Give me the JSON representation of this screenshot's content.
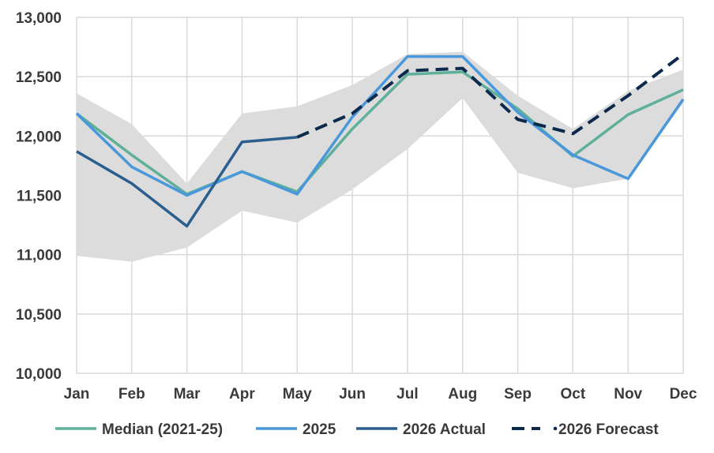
{
  "chart_data": {
    "type": "line",
    "title": "",
    "xlabel": "",
    "ylabel": "",
    "categories": [
      "Jan",
      "Feb",
      "Mar",
      "Apr",
      "May",
      "Jun",
      "Jul",
      "Aug",
      "Sep",
      "Oct",
      "Nov",
      "Dec"
    ],
    "ylim": [
      10000,
      13000
    ],
    "yticks": [
      10000,
      10500,
      11000,
      11500,
      12000,
      12500,
      13000
    ],
    "ytick_labels": [
      "10,000",
      "10,500",
      "11,000",
      "11,500",
      "12,000",
      "12,500",
      "13,000"
    ],
    "grid": true,
    "legend_position": "bottom",
    "range_band": {
      "upper": [
        12360,
        12100,
        11600,
        12190,
        12250,
        12430,
        12690,
        12710,
        12340,
        12060,
        12380,
        12560
      ],
      "lower": [
        10990,
        10940,
        11060,
        11370,
        11270,
        11550,
        11890,
        12320,
        11690,
        11560,
        11640,
        12280
      ],
      "color": "#dcdcdc"
    },
    "series": [
      {
        "name": "Median (2021-25)",
        "color": "#5faf9a",
        "dash": "solid",
        "values": [
          12190,
          11840,
          11510,
          11700,
          11530,
          12060,
          12520,
          12540,
          12230,
          11830,
          12180,
          12390
        ]
      },
      {
        "name": "2025",
        "color": "#4a98dc",
        "dash": "solid",
        "values": [
          12190,
          11740,
          11500,
          11700,
          11510,
          12160,
          12670,
          12670,
          12200,
          11840,
          11640,
          12310
        ]
      },
      {
        "name": "2026 Actual",
        "color": "#2a5e8e",
        "dash": "solid",
        "values": [
          11870,
          11600,
          11240,
          11950,
          11990,
          null,
          null,
          null,
          null,
          null,
          null,
          null
        ]
      },
      {
        "name": "2026 Forecast",
        "color": "#0d2a4c",
        "dash": "dashed",
        "values": [
          null,
          null,
          null,
          null,
          11990,
          12190,
          12550,
          12570,
          12140,
          12020,
          12340,
          12690
        ]
      }
    ]
  }
}
